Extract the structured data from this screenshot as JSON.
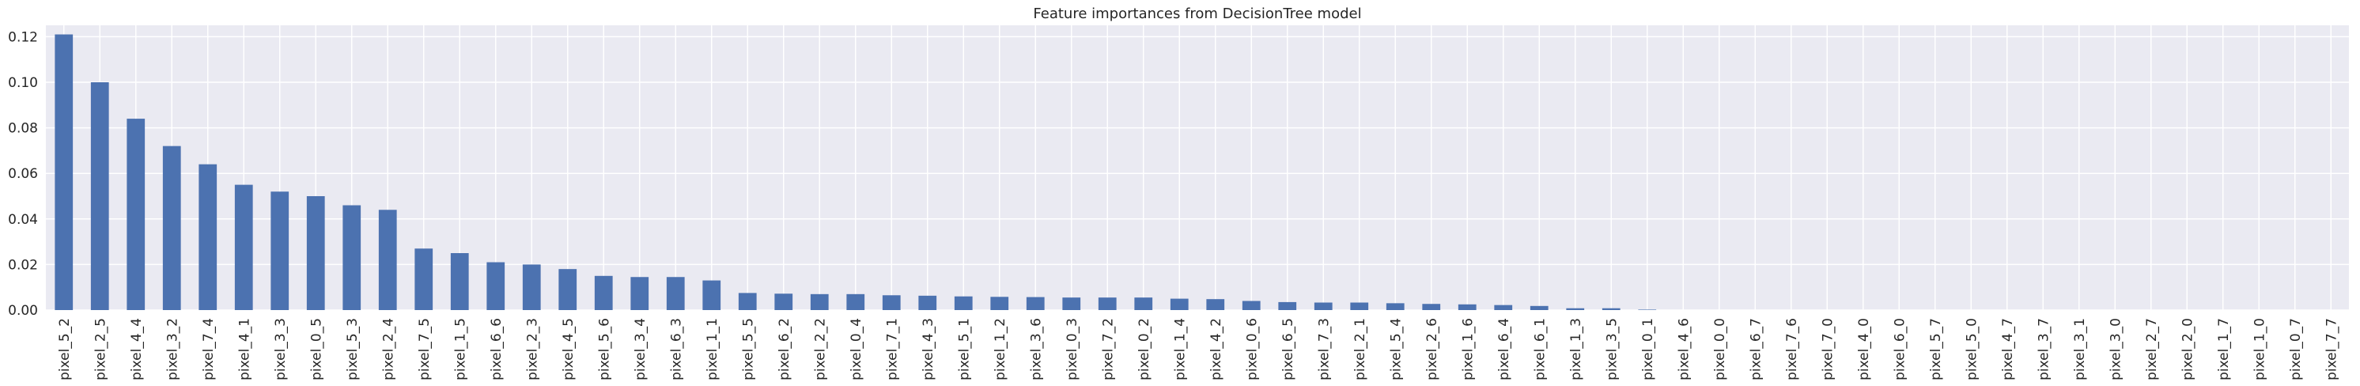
{
  "chart_data": {
    "type": "bar",
    "title": "Feature importances from DecisionTree model",
    "xlabel": "",
    "ylabel": "",
    "ylim": [
      0,
      0.125
    ],
    "yticks": [
      "0.00",
      "0.02",
      "0.04",
      "0.06",
      "0.08",
      "0.10",
      "0.12"
    ],
    "grid": true,
    "legend": "none",
    "colors": {
      "bar": "#4c72b0",
      "plot_bg": "#eaeaf2",
      "grid": "#ffffff",
      "text": "#262626"
    },
    "categories": [
      "pixel_5_2",
      "pixel_2_5",
      "pixel_4_4",
      "pixel_3_2",
      "pixel_7_4",
      "pixel_4_1",
      "pixel_3_3",
      "pixel_0_5",
      "pixel_5_3",
      "pixel_2_4",
      "pixel_7_5",
      "pixel_1_5",
      "pixel_6_6",
      "pixel_2_3",
      "pixel_4_5",
      "pixel_5_6",
      "pixel_3_4",
      "pixel_6_3",
      "pixel_1_1",
      "pixel_5_5",
      "pixel_6_2",
      "pixel_2_2",
      "pixel_0_4",
      "pixel_7_1",
      "pixel_4_3",
      "pixel_5_1",
      "pixel_1_2",
      "pixel_3_6",
      "pixel_0_3",
      "pixel_7_2",
      "pixel_0_2",
      "pixel_1_4",
      "pixel_4_2",
      "pixel_0_6",
      "pixel_6_5",
      "pixel_7_3",
      "pixel_2_1",
      "pixel_5_4",
      "pixel_2_6",
      "pixel_1_6",
      "pixel_6_4",
      "pixel_6_1",
      "pixel_1_3",
      "pixel_3_5",
      "pixel_0_1",
      "pixel_4_6",
      "pixel_0_0",
      "pixel_6_7",
      "pixel_7_6",
      "pixel_7_0",
      "pixel_4_0",
      "pixel_6_0",
      "pixel_5_7",
      "pixel_5_0",
      "pixel_4_7",
      "pixel_3_7",
      "pixel_3_1",
      "pixel_3_0",
      "pixel_2_7",
      "pixel_2_0",
      "pixel_1_7",
      "pixel_1_0",
      "pixel_0_7",
      "pixel_7_7"
    ],
    "values": [
      0.121,
      0.1,
      0.084,
      0.072,
      0.064,
      0.055,
      0.052,
      0.05,
      0.046,
      0.044,
      0.027,
      0.025,
      0.021,
      0.02,
      0.018,
      0.015,
      0.0145,
      0.0145,
      0.013,
      0.0075,
      0.0072,
      0.007,
      0.007,
      0.0065,
      0.0063,
      0.006,
      0.0058,
      0.0057,
      0.0055,
      0.0055,
      0.0055,
      0.005,
      0.0048,
      0.004,
      0.0035,
      0.0033,
      0.0033,
      0.003,
      0.0027,
      0.0025,
      0.0022,
      0.0018,
      0.0008,
      0.0008,
      0.0002,
      0,
      0,
      0,
      0,
      0,
      0,
      0,
      0,
      0,
      0,
      0,
      0,
      0,
      0,
      0,
      0,
      0,
      0,
      0
    ]
  }
}
